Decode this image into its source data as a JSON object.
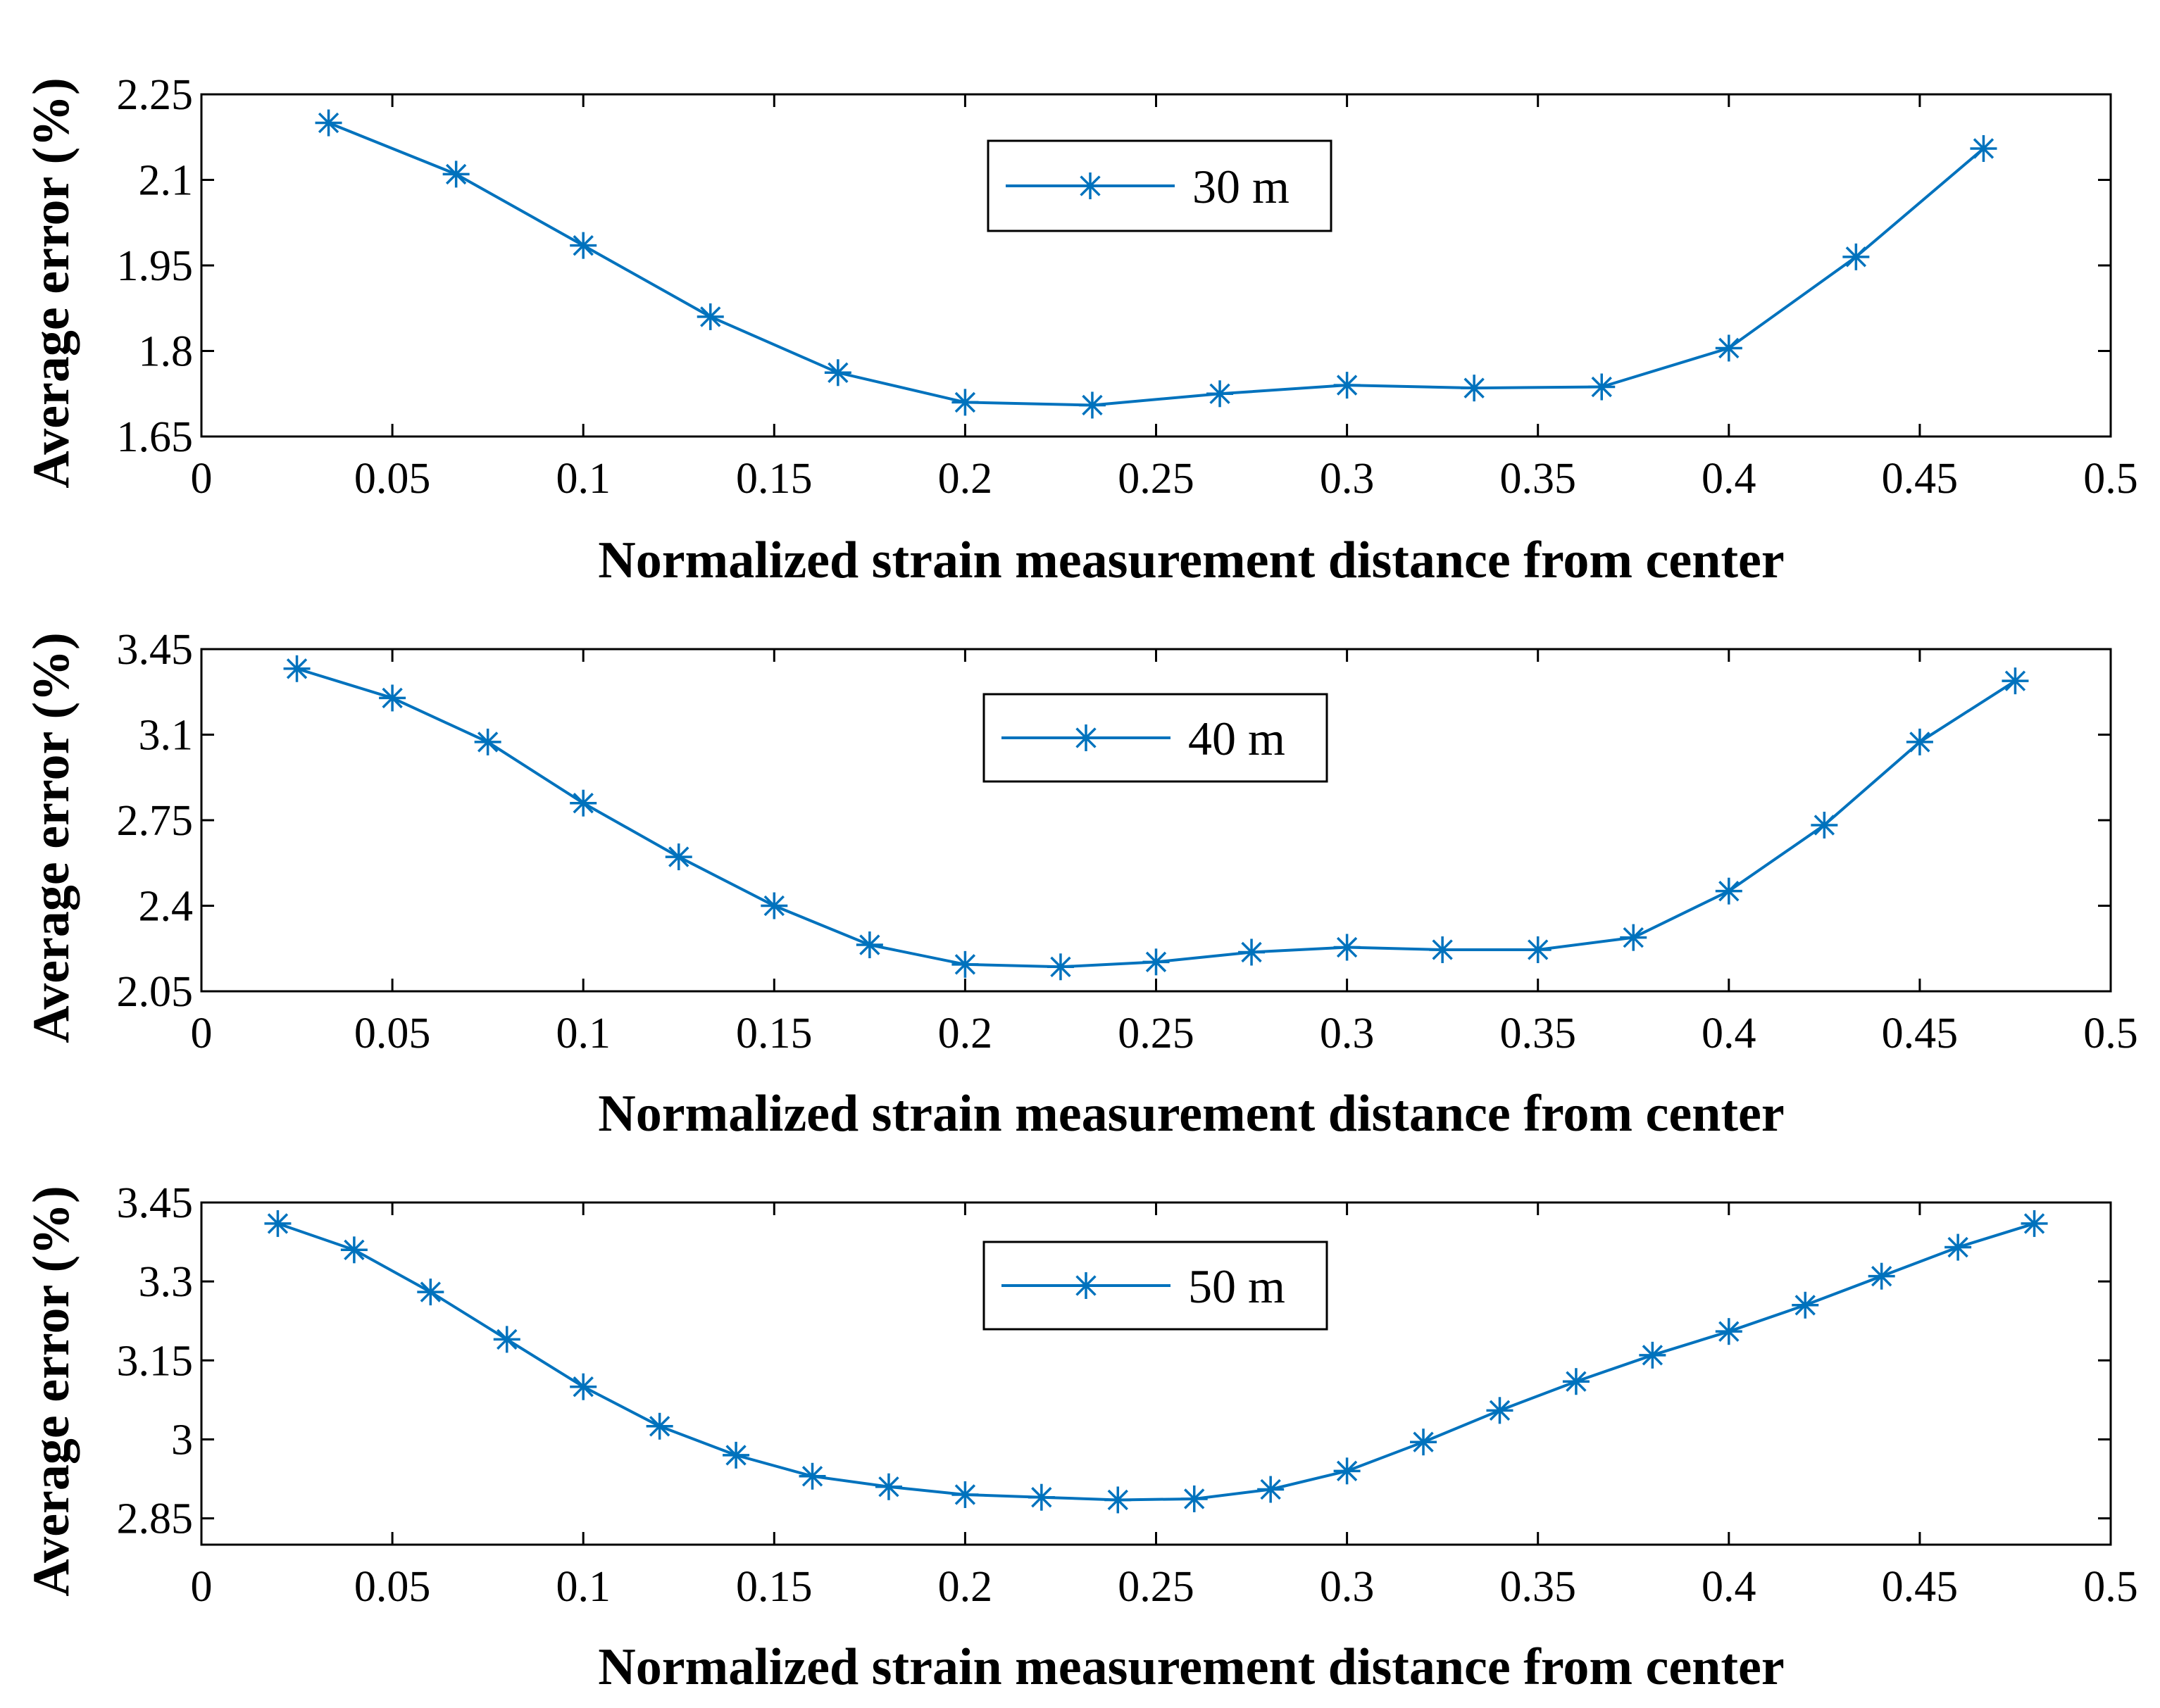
{
  "colors": {
    "series": "#0072BD",
    "axis": "#000000"
  },
  "chart_data": [
    {
      "type": "line",
      "title": "",
      "xlabel": "Normalized strain measurement distance from center",
      "ylabel": "Average error (%)",
      "xlim": [
        0,
        0.5
      ],
      "ylim": [
        1.65,
        2.25
      ],
      "xticks": [
        0,
        0.05,
        0.1,
        0.15,
        0.2,
        0.25,
        0.3,
        0.35,
        0.4,
        0.45,
        0.5
      ],
      "xtick_labels": [
        "0",
        "0.05",
        "0.1",
        "0.15",
        "0.2",
        "0.25",
        "0.3",
        "0.35",
        "0.4",
        "0.45",
        "0.5"
      ],
      "yticks": [
        1.65,
        1.8,
        1.95,
        2.1,
        2.25
      ],
      "ytick_labels": [
        "1.65",
        "1.8",
        "1.95",
        "2.1",
        "2.25"
      ],
      "legend": {
        "label": "30 m",
        "placement": "top-center"
      },
      "series": [
        {
          "name": "30 m",
          "marker": "asterisk",
          "x": [
            0.0333,
            0.0667,
            0.1,
            0.1333,
            0.1667,
            0.2,
            0.2333,
            0.2667,
            0.3,
            0.3333,
            0.3667,
            0.4,
            0.4333,
            0.4667
          ],
          "y": [
            2.2,
            2.11,
            1.985,
            1.86,
            1.762,
            1.71,
            1.705,
            1.725,
            1.74,
            1.735,
            1.737,
            1.805,
            1.965,
            2.155
          ]
        }
      ]
    },
    {
      "type": "line",
      "title": "",
      "xlabel": "Normalized strain measurement distance from center",
      "ylabel": "Average error (%)",
      "xlim": [
        0,
        0.5
      ],
      "ylim": [
        2.05,
        3.45
      ],
      "xticks": [
        0,
        0.05,
        0.1,
        0.15,
        0.2,
        0.25,
        0.3,
        0.35,
        0.4,
        0.45,
        0.5
      ],
      "xtick_labels": [
        "0",
        "0.05",
        "0.1",
        "0.15",
        "0.2",
        "0.25",
        "0.3",
        "0.35",
        "0.4",
        "0.45",
        "0.5"
      ],
      "yticks": [
        2.05,
        2.4,
        2.75,
        3.1,
        3.45
      ],
      "ytick_labels": [
        "2.05",
        "2.4",
        "2.75",
        "3.1",
        "3.45"
      ],
      "legend": {
        "label": "40 m",
        "placement": "top-center"
      },
      "series": [
        {
          "name": "40 m",
          "marker": "asterisk",
          "x": [
            0.025,
            0.05,
            0.075,
            0.1,
            0.125,
            0.15,
            0.175,
            0.2,
            0.225,
            0.25,
            0.275,
            0.3,
            0.325,
            0.35,
            0.375,
            0.4,
            0.425,
            0.45,
            0.475
          ],
          "y": [
            3.37,
            3.25,
            3.07,
            2.82,
            2.6,
            2.4,
            2.24,
            2.16,
            2.15,
            2.17,
            2.21,
            2.23,
            2.22,
            2.22,
            2.27,
            2.46,
            2.73,
            3.07,
            3.32
          ]
        }
      ]
    },
    {
      "type": "line",
      "title": "",
      "xlabel": "Normalized strain measurement distance from center",
      "ylabel": "Average error (%)",
      "xlim": [
        0,
        0.5
      ],
      "ylim": [
        2.8,
        3.45
      ],
      "xticks": [
        0,
        0.05,
        0.1,
        0.15,
        0.2,
        0.25,
        0.3,
        0.35,
        0.4,
        0.45,
        0.5
      ],
      "xtick_labels": [
        "0",
        "0.05",
        "0.1",
        "0.15",
        "0.2",
        "0.25",
        "0.3",
        "0.35",
        "0.4",
        "0.45",
        "0.5"
      ],
      "yticks": [
        2.85,
        3.0,
        3.15,
        3.3,
        3.45
      ],
      "ytick_labels": [
        "2.85",
        "3",
        "3.15",
        "3.3",
        "3.45"
      ],
      "legend": {
        "label": "50 m",
        "placement": "top-center"
      },
      "series": [
        {
          "name": "50 m",
          "marker": "asterisk",
          "x": [
            0.02,
            0.04,
            0.06,
            0.08,
            0.1,
            0.12,
            0.14,
            0.16,
            0.18,
            0.2,
            0.22,
            0.24,
            0.26,
            0.28,
            0.3,
            0.32,
            0.34,
            0.36,
            0.38,
            0.4,
            0.42,
            0.44,
            0.46,
            0.48
          ],
          "y": [
            3.41,
            3.36,
            3.28,
            3.19,
            3.1,
            3.025,
            2.97,
            2.93,
            2.91,
            2.895,
            2.89,
            2.885,
            2.887,
            2.905,
            2.94,
            2.995,
            3.055,
            3.11,
            3.16,
            3.205,
            3.255,
            3.31,
            3.365,
            3.41
          ]
        }
      ]
    }
  ]
}
